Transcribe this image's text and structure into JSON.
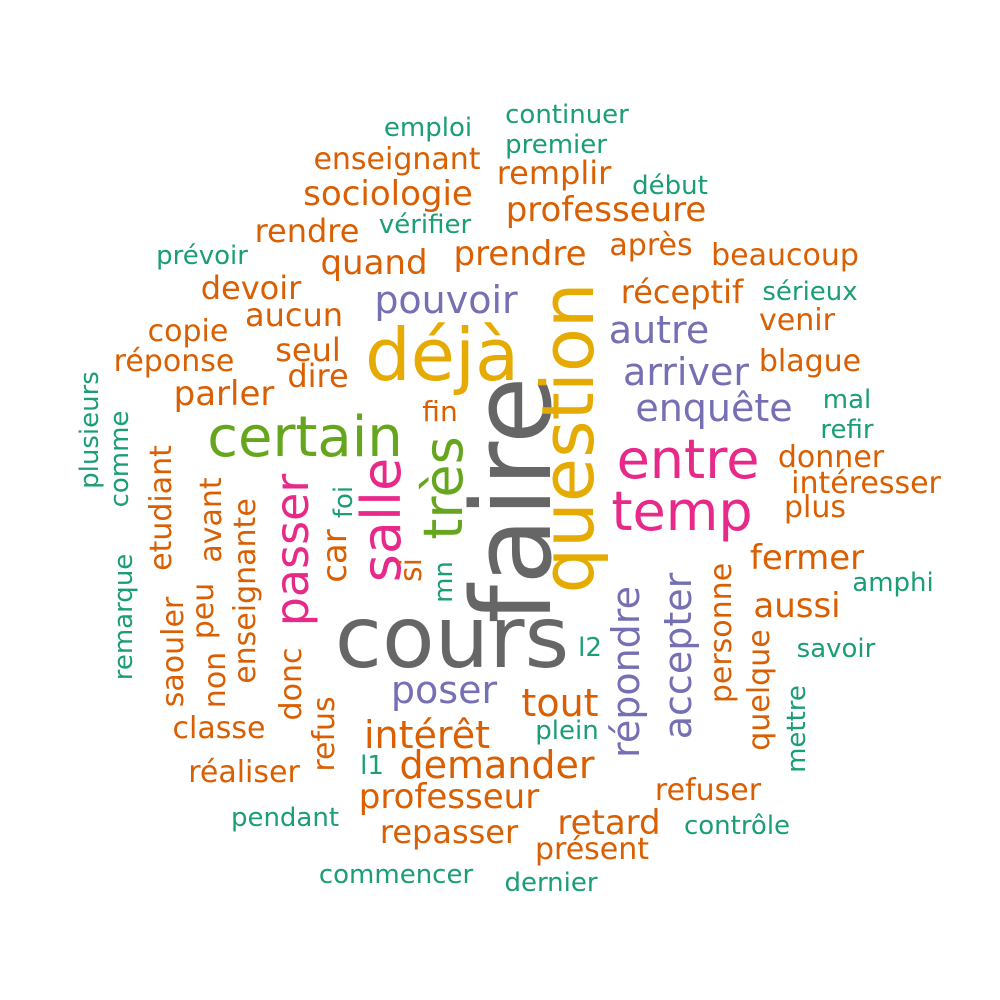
{
  "colors": {
    "gray": "#666666",
    "gold": "#e6ab02",
    "pink": "#e7298a",
    "green": "#66a61e",
    "purple": "#7570b3",
    "orange": "#d95f02",
    "teal": "#1b9e77"
  },
  "words": [
    {
      "text": "faire",
      "color": "gray"
    },
    {
      "text": "cours",
      "color": "gray"
    },
    {
      "text": "question",
      "color": "gold"
    },
    {
      "text": "déjà",
      "color": "gold"
    },
    {
      "text": "certain",
      "color": "green"
    },
    {
      "text": "très",
      "color": "green"
    },
    {
      "text": "entre",
      "color": "pink"
    },
    {
      "text": "temp",
      "color": "pink"
    },
    {
      "text": "salle",
      "color": "pink"
    },
    {
      "text": "passer",
      "color": "pink"
    },
    {
      "text": "pouvoir",
      "color": "purple"
    },
    {
      "text": "autre",
      "color": "purple"
    },
    {
      "text": "arriver",
      "color": "purple"
    },
    {
      "text": "enquête",
      "color": "purple"
    },
    {
      "text": "poser",
      "color": "purple"
    },
    {
      "text": "répondre",
      "color": "purple"
    },
    {
      "text": "accepter",
      "color": "purple"
    },
    {
      "text": "continuer",
      "color": "teal"
    },
    {
      "text": "emploi",
      "color": "teal"
    },
    {
      "text": "premier",
      "color": "teal"
    },
    {
      "text": "enseignant",
      "color": "orange"
    },
    {
      "text": "remplir",
      "color": "orange"
    },
    {
      "text": "début",
      "color": "teal"
    },
    {
      "text": "sociologie",
      "color": "orange"
    },
    {
      "text": "professeure",
      "color": "orange"
    },
    {
      "text": "vérifier",
      "color": "teal"
    },
    {
      "text": "rendre",
      "color": "orange"
    },
    {
      "text": "prévoir",
      "color": "teal"
    },
    {
      "text": "après",
      "color": "orange"
    },
    {
      "text": "beaucoup",
      "color": "orange"
    },
    {
      "text": "prendre",
      "color": "orange"
    },
    {
      "text": "quand",
      "color": "orange"
    },
    {
      "text": "devoir",
      "color": "orange"
    },
    {
      "text": "réceptif",
      "color": "orange"
    },
    {
      "text": "sérieux",
      "color": "teal"
    },
    {
      "text": "aucun",
      "color": "orange"
    },
    {
      "text": "copie",
      "color": "orange"
    },
    {
      "text": "venir",
      "color": "orange"
    },
    {
      "text": "seul",
      "color": "orange"
    },
    {
      "text": "réponse",
      "color": "orange"
    },
    {
      "text": "blague",
      "color": "orange"
    },
    {
      "text": "dire",
      "color": "orange"
    },
    {
      "text": "parler",
      "color": "orange"
    },
    {
      "text": "mal",
      "color": "teal"
    },
    {
      "text": "fin",
      "color": "orange"
    },
    {
      "text": "refir",
      "color": "teal"
    },
    {
      "text": "donner",
      "color": "orange"
    },
    {
      "text": "intéresser",
      "color": "orange"
    },
    {
      "text": "plus",
      "color": "orange"
    },
    {
      "text": "fermer",
      "color": "orange"
    },
    {
      "text": "amphi",
      "color": "teal"
    },
    {
      "text": "aussi",
      "color": "orange"
    },
    {
      "text": "savoir",
      "color": "teal"
    },
    {
      "text": "l2",
      "color": "teal"
    },
    {
      "text": "tout",
      "color": "orange"
    },
    {
      "text": "plein",
      "color": "teal"
    },
    {
      "text": "intérêt",
      "color": "orange"
    },
    {
      "text": "classe",
      "color": "orange"
    },
    {
      "text": "demander",
      "color": "orange"
    },
    {
      "text": "l1",
      "color": "teal"
    },
    {
      "text": "réaliser",
      "color": "orange"
    },
    {
      "text": "refuser",
      "color": "orange"
    },
    {
      "text": "professeur",
      "color": "orange"
    },
    {
      "text": "retard",
      "color": "orange"
    },
    {
      "text": "pendant",
      "color": "teal"
    },
    {
      "text": "contrôle",
      "color": "teal"
    },
    {
      "text": "repasser",
      "color": "orange"
    },
    {
      "text": "présent",
      "color": "orange"
    },
    {
      "text": "commencer",
      "color": "teal"
    },
    {
      "text": "dernier",
      "color": "teal"
    },
    {
      "text": "plusieurs",
      "color": "teal"
    },
    {
      "text": "comme",
      "color": "teal"
    },
    {
      "text": "remarque",
      "color": "teal"
    },
    {
      "text": "etudiant",
      "color": "orange"
    },
    {
      "text": "saouler",
      "color": "orange"
    },
    {
      "text": "peu",
      "color": "orange"
    },
    {
      "text": "non",
      "color": "orange"
    },
    {
      "text": "avant",
      "color": "orange"
    },
    {
      "text": "enseignante",
      "color": "orange"
    },
    {
      "text": "donc",
      "color": "orange"
    },
    {
      "text": "refus",
      "color": "orange"
    },
    {
      "text": "car",
      "color": "orange"
    },
    {
      "text": "foi",
      "color": "teal"
    },
    {
      "text": "si",
      "color": "orange"
    },
    {
      "text": "mn",
      "color": "teal"
    },
    {
      "text": "personne",
      "color": "orange"
    },
    {
      "text": "quelque",
      "color": "orange"
    },
    {
      "text": "mettre",
      "color": "teal"
    }
  ]
}
